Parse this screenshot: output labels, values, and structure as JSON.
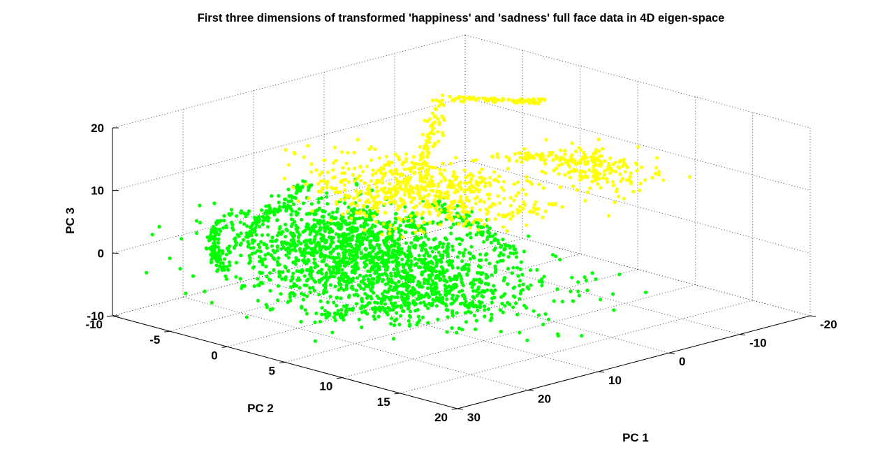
{
  "chart_data": {
    "type": "scatter",
    "title": "First three dimensions of transformed 'happiness' and 'sadness' full face data in 4D eigen-space",
    "xlabel": "PC 1",
    "ylabel": "PC 2",
    "zlabel": "PC 3",
    "xlim": [
      -20,
      30
    ],
    "ylim": [
      -10,
      20
    ],
    "zlim": [
      -10,
      20
    ],
    "xticks": [
      "-20",
      "-10",
      "0",
      "10",
      "20",
      "30"
    ],
    "yticks": [
      "-10",
      "-5",
      "0",
      "5",
      "10",
      "15",
      "20"
    ],
    "zticks": [
      "-10",
      "0",
      "10",
      "20"
    ],
    "grid": true,
    "legend": "none",
    "colors": {
      "happiness_points": "#00ff00",
      "sadness_points": "#ffff00"
    },
    "series": [
      {
        "color": "#00ff00",
        "clusters": [
          {
            "x": 14,
            "y": 2,
            "z": -1,
            "spread": [
              6,
              5,
              2.5
            ],
            "n": 1100
          },
          {
            "x": 11,
            "y": -1,
            "z": 2,
            "spread": [
              5,
              3,
              2
            ],
            "n": 350
          },
          {
            "x": 8,
            "y": 6,
            "z": -4,
            "spread": [
              5,
              4,
              2
            ],
            "n": 300
          },
          {
            "x": 5,
            "y": -4,
            "z": 0,
            "spread": [
              4,
              3,
              2
            ],
            "n": 150
          }
        ],
        "trails": [
          {
            "points": [
              [
                19,
                -8,
                -3
              ],
              [
                15,
                -7,
                1
              ],
              [
                13,
                -7,
                3
              ],
              [
                11,
                -6,
                5
              ],
              [
                9,
                -6,
                7
              ]
            ],
            "n": 110
          },
          {
            "points": [
              [
                24,
                -4,
                -2
              ],
              [
                22,
                -6,
                0
              ],
              [
                20,
                -7,
                3
              ],
              [
                17,
                -6,
                5
              ]
            ],
            "n": 80
          },
          {
            "points": [
              [
                20,
                2,
                -7
              ],
              [
                17,
                4,
                -6
              ],
              [
                14,
                6,
                -5
              ],
              [
                10,
                6,
                -6
              ],
              [
                6,
                8,
                -7
              ]
            ],
            "n": 90
          },
          {
            "points": [
              [
                2,
                0,
                5
              ],
              [
                -2,
                2,
                1
              ],
              [
                -4,
                4,
                -3
              ]
            ],
            "n": 70
          }
        ]
      },
      {
        "color": "#ffff00",
        "clusters": [
          {
            "x": 5,
            "y": 2,
            "z": 9,
            "spread": [
              4,
              4,
              1.5
            ],
            "n": 450
          },
          {
            "x": 8,
            "y": 0,
            "z": 7,
            "spread": [
              3,
              3,
              1.5
            ],
            "n": 120
          },
          {
            "x": -9,
            "y": 8,
            "z": 11,
            "spread": [
              2,
              2,
              1.5
            ],
            "n": 170
          }
        ],
        "trails": [
          {
            "points": [
              [
                -2,
                -1,
                19
              ],
              [
                -4,
                1,
                21
              ],
              [
                -6,
                3,
                21
              ],
              [
                -8,
                4,
                20
              ]
            ],
            "n": 90
          },
          {
            "points": [
              [
                -2,
                -1,
                19
              ],
              [
                -1,
                -1,
                16
              ],
              [
                0,
                -1,
                13
              ],
              [
                2,
                0,
                10
              ]
            ],
            "n": 70
          },
          {
            "points": [
              [
                -1,
                4,
                13
              ],
              [
                -5,
                6,
                13
              ],
              [
                -9,
                8,
                12
              ]
            ],
            "n": 60
          },
          {
            "points": [
              [
                6,
                4,
                5
              ],
              [
                1,
                6,
                5
              ],
              [
                -4,
                8,
                7
              ]
            ],
            "n": 40
          }
        ]
      }
    ]
  }
}
